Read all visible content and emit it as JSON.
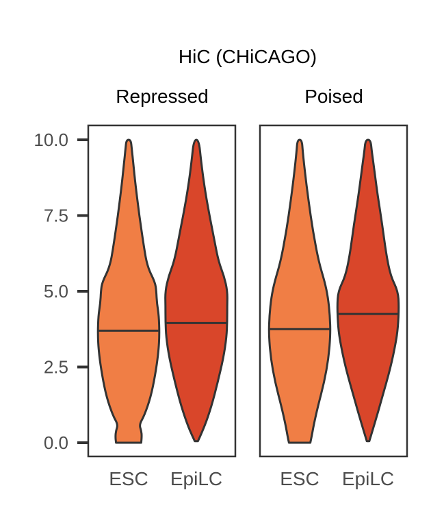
{
  "chart_data": {
    "type": "violin",
    "title": "HiC (CHiCAGO)",
    "panels": [
      {
        "label": "Repressed",
        "categories": [
          "ESC",
          "EpiLC"
        ],
        "medians": [
          3.7,
          3.95
        ],
        "range": [
          [
            0.0,
            10.0
          ],
          [
            0.05,
            10.0
          ]
        ],
        "colors": [
          "#F07E45",
          "#D9462A"
        ],
        "halfwidths": [
          [
            [
              0.0,
              0.4
            ],
            [
              0.2,
              0.42
            ],
            [
              0.4,
              0.4
            ],
            [
              0.6,
              0.34
            ],
            [
              0.9,
              0.5
            ],
            [
              1.5,
              0.7
            ],
            [
              2.2,
              0.84
            ],
            [
              3.0,
              0.95
            ],
            [
              3.6,
              0.98
            ],
            [
              4.2,
              0.96
            ],
            [
              4.6,
              0.9
            ],
            [
              5.0,
              0.88
            ],
            [
              5.3,
              0.84
            ],
            [
              5.8,
              0.6
            ],
            [
              6.5,
              0.48
            ],
            [
              7.5,
              0.34
            ],
            [
              8.5,
              0.22
            ],
            [
              9.2,
              0.15
            ],
            [
              9.7,
              0.1
            ],
            [
              10.0,
              0.07
            ]
          ],
          [
            [
              0.05,
              0.05
            ],
            [
              0.5,
              0.25
            ],
            [
              1.2,
              0.48
            ],
            [
              2.0,
              0.68
            ],
            [
              2.8,
              0.86
            ],
            [
              3.5,
              0.96
            ],
            [
              4.0,
              0.98
            ],
            [
              4.5,
              0.98
            ],
            [
              5.0,
              0.99
            ],
            [
              5.5,
              0.88
            ],
            [
              6.0,
              0.7
            ],
            [
              6.8,
              0.55
            ],
            [
              7.6,
              0.4
            ],
            [
              8.5,
              0.25
            ],
            [
              9.3,
              0.15
            ],
            [
              10.0,
              0.08
            ]
          ]
        ]
      },
      {
        "label": "Poised",
        "categories": [
          "ESC",
          "EpiLC"
        ],
        "medians": [
          3.75,
          4.25
        ],
        "range": [
          [
            0.0,
            10.0
          ],
          [
            0.05,
            10.0
          ]
        ],
        "colors": [
          "#F07E45",
          "#D9462A"
        ],
        "halfwidths": [
          [
            [
              0.0,
              0.34
            ],
            [
              0.2,
              0.38
            ],
            [
              0.6,
              0.45
            ],
            [
              1.2,
              0.58
            ],
            [
              2.0,
              0.78
            ],
            [
              2.8,
              0.92
            ],
            [
              3.6,
              0.98
            ],
            [
              4.2,
              0.96
            ],
            [
              4.8,
              0.9
            ],
            [
              5.3,
              0.8
            ],
            [
              6.0,
              0.6
            ],
            [
              7.0,
              0.42
            ],
            [
              8.0,
              0.28
            ],
            [
              9.0,
              0.16
            ],
            [
              9.6,
              0.1
            ],
            [
              10.0,
              0.07
            ]
          ],
          [
            [
              0.05,
              0.04
            ],
            [
              0.6,
              0.2
            ],
            [
              1.5,
              0.45
            ],
            [
              2.5,
              0.72
            ],
            [
              3.3,
              0.88
            ],
            [
              3.8,
              0.95
            ],
            [
              4.5,
              0.98
            ],
            [
              5.0,
              0.95
            ],
            [
              5.5,
              0.72
            ],
            [
              6.2,
              0.58
            ],
            [
              7.2,
              0.45
            ],
            [
              8.2,
              0.3
            ],
            [
              9.0,
              0.2
            ],
            [
              9.6,
              0.12
            ],
            [
              10.0,
              0.08
            ]
          ]
        ]
      }
    ],
    "y_ticks": [
      "0.0",
      "2.5",
      "5.0",
      "7.5",
      "10.0"
    ],
    "ylim": [
      -0.4,
      10.5
    ],
    "grid": false,
    "legend": "none"
  }
}
